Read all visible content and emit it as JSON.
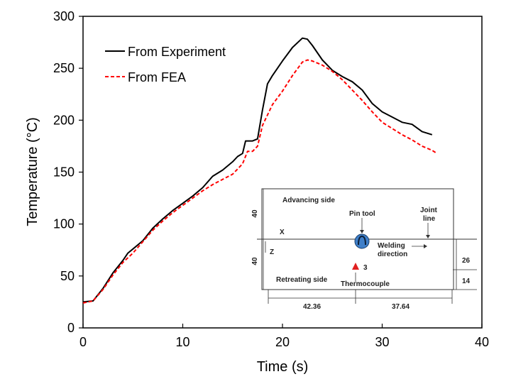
{
  "chart_data": {
    "type": "line",
    "xlabel": "Time (s)",
    "ylabel": "Temperature (°C)",
    "xlim": [
      0,
      40
    ],
    "ylim": [
      0,
      300
    ],
    "xticks": [
      "0",
      "10",
      "20",
      "30",
      "40"
    ],
    "yticks": [
      "0",
      "50",
      "100",
      "150",
      "200",
      "250",
      "300"
    ],
    "legend_position": "top-left",
    "grid": false,
    "series": [
      {
        "name": "From Experiment",
        "color": "#000000",
        "style": "solid",
        "points": [
          [
            0,
            25
          ],
          [
            1,
            26
          ],
          [
            2,
            38
          ],
          [
            3,
            53
          ],
          [
            4,
            65
          ],
          [
            4.5,
            72
          ],
          [
            5,
            76
          ],
          [
            6,
            84
          ],
          [
            7,
            96
          ],
          [
            8,
            105
          ],
          [
            9,
            113
          ],
          [
            10,
            120
          ],
          [
            11,
            127
          ],
          [
            12,
            135
          ],
          [
            13,
            146
          ],
          [
            14,
            152
          ],
          [
            15,
            160
          ],
          [
            15.5,
            165
          ],
          [
            16,
            168
          ],
          [
            16.3,
            180
          ],
          [
            17,
            180
          ],
          [
            17.5,
            182
          ],
          [
            18,
            210
          ],
          [
            18.5,
            235
          ],
          [
            19,
            243
          ],
          [
            20,
            257
          ],
          [
            21,
            270
          ],
          [
            22,
            279
          ],
          [
            22.5,
            278
          ],
          [
            23,
            272
          ],
          [
            24,
            258
          ],
          [
            25,
            248
          ],
          [
            26,
            242
          ],
          [
            27,
            237
          ],
          [
            28,
            229
          ],
          [
            29,
            216
          ],
          [
            30,
            208
          ],
          [
            31,
            203
          ],
          [
            32,
            198
          ],
          [
            33,
            196
          ],
          [
            34,
            189
          ],
          [
            35,
            186
          ]
        ]
      },
      {
        "name": "From FEA",
        "color": "#ff0000",
        "style": "dashed",
        "points": [
          [
            0,
            24
          ],
          [
            1,
            26
          ],
          [
            2,
            37
          ],
          [
            3,
            51
          ],
          [
            4,
            63
          ],
          [
            5,
            72
          ],
          [
            6,
            83
          ],
          [
            7,
            94
          ],
          [
            8,
            103
          ],
          [
            9,
            111
          ],
          [
            10,
            118
          ],
          [
            11,
            125
          ],
          [
            12,
            132
          ],
          [
            13,
            138
          ],
          [
            14,
            143
          ],
          [
            15,
            148
          ],
          [
            16,
            158
          ],
          [
            16.5,
            170
          ],
          [
            17,
            170
          ],
          [
            17.5,
            175
          ],
          [
            18,
            195
          ],
          [
            19,
            215
          ],
          [
            20,
            228
          ],
          [
            21,
            243
          ],
          [
            22,
            256
          ],
          [
            22.5,
            258
          ],
          [
            23,
            257
          ],
          [
            24,
            253
          ],
          [
            25,
            247
          ],
          [
            26,
            239
          ],
          [
            27,
            229
          ],
          [
            28,
            219
          ],
          [
            29,
            208
          ],
          [
            30,
            198
          ],
          [
            31,
            192
          ],
          [
            32,
            186
          ],
          [
            33,
            181
          ],
          [
            34,
            175
          ],
          [
            35,
            171
          ],
          [
            35.5,
            168
          ]
        ]
      }
    ]
  },
  "inset": {
    "advancing_side": "Advancing side",
    "retreating_side": "Retreating side",
    "pin_tool": "Pin tool",
    "joint_line_1": "Joint",
    "joint_line_2": "line",
    "welding_1": "Welding",
    "welding_2": "direction",
    "thermocouple": "Thermocouple",
    "thermocouple_id": "3",
    "x_axis": "X",
    "z_axis": "Z",
    "dim_top": "40",
    "dim_bottom": "40",
    "dim_right_top": "26",
    "dim_right_bottom": "14",
    "dim_left": "42.36",
    "dim_right": "37.64",
    "tool_color": "#3f7fc9",
    "thermocouple_color": "#e02020"
  }
}
